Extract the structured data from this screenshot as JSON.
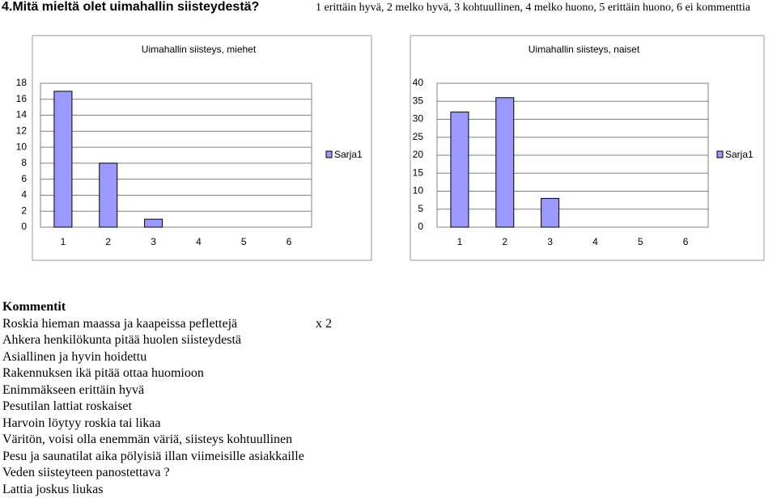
{
  "header": {
    "title": "4.Mitä mieltä olet uimahallin siisteydestä?",
    "scale": "1 erittäin hyvä, 2 melko hyvä, 3 kohtuullinen, 4 melko huono, 5 erittäin huono, 6 ei kommenttia"
  },
  "chart_data": [
    {
      "type": "bar",
      "title": "Uimahallin siisteys, miehet",
      "categories": [
        "1",
        "2",
        "3",
        "4",
        "5",
        "6"
      ],
      "series": [
        {
          "name": "Sarja1",
          "color": "#9999ff",
          "values": [
            17,
            8,
            1,
            0,
            0,
            0
          ]
        }
      ],
      "ylim": [
        0,
        18
      ],
      "yticks": [
        0,
        2,
        4,
        6,
        8,
        10,
        12,
        14,
        16,
        18
      ],
      "grid": true,
      "legend": "right"
    },
    {
      "type": "bar",
      "title": "Uimahallin siisteys, naiset",
      "categories": [
        "1",
        "2",
        "3",
        "4",
        "5",
        "6"
      ],
      "series": [
        {
          "name": "Sarja1",
          "color": "#9999ff",
          "values": [
            32,
            36,
            8,
            0,
            0,
            0
          ]
        }
      ],
      "ylim": [
        0,
        40
      ],
      "yticks": [
        0,
        5,
        10,
        15,
        20,
        25,
        30,
        35,
        40
      ],
      "grid": true,
      "legend": "right"
    }
  ],
  "comments": {
    "title": "Kommentit",
    "rows": [
      {
        "text": "Roskia hieman maassa ja kaapeissa peflettejä",
        "note": "x 2"
      },
      {
        "text": "Ahkera henkilökunta pitää huolen siisteydestä"
      },
      {
        "text": "Asiallinen ja hyvin hoidettu"
      },
      {
        "text": "Rakennuksen ikä pitää ottaa huomioon"
      },
      {
        "text": "Enimmäkseen erittäin hyvä"
      },
      {
        "text": "Pesutilan lattiat roskaiset"
      },
      {
        "text": "Harvoin löytyy roskia tai likaa"
      },
      {
        "text": "Väritön, voisi olla enemmän väriä, siisteys kohtuullinen"
      },
      {
        "text": "Pesu ja saunatilat aika pölyisiä illan viimeisille asiakkaille"
      },
      {
        "text": "Veden siisteyteen panostettava   ?"
      },
      {
        "text": "Lattia joskus liukas"
      }
    ]
  }
}
